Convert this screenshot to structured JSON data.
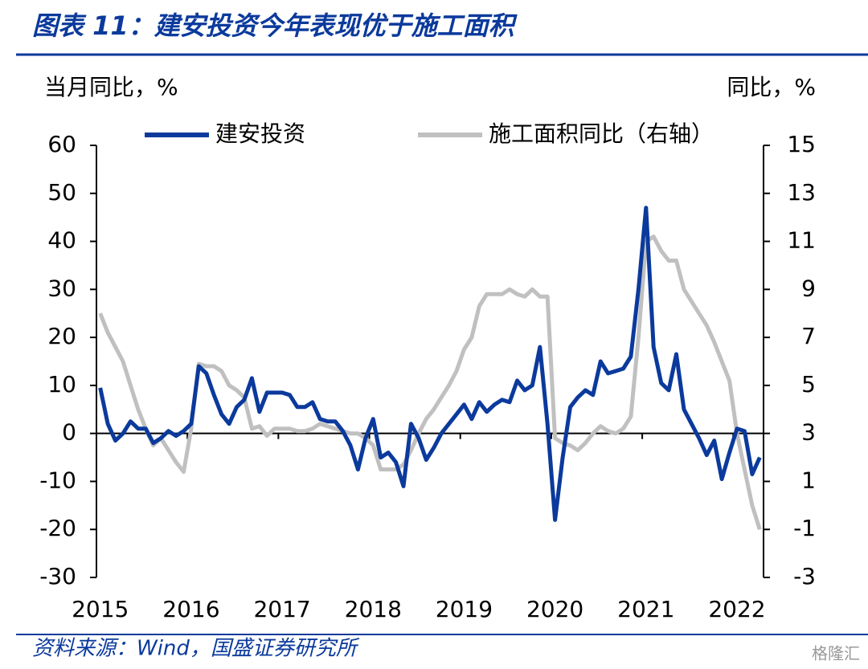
{
  "chart_data": {
    "type": "line",
    "title": "图表 11：建安投资今年表现优于施工面积",
    "ylabel": "当月同比，%",
    "y2label": "同比，%",
    "source": "资料来源：Wind，国盛证券研究所",
    "watermark": "格隆汇",
    "categories": [
      "2015",
      null,
      null,
      null,
      null,
      null,
      null,
      null,
      null,
      null,
      null,
      null,
      "2016",
      null,
      null,
      null,
      null,
      null,
      null,
      null,
      null,
      null,
      null,
      null,
      "2017",
      null,
      null,
      null,
      null,
      null,
      null,
      null,
      null,
      null,
      null,
      null,
      "2018",
      null,
      null,
      null,
      null,
      null,
      null,
      null,
      null,
      null,
      null,
      null,
      "2019",
      null,
      null,
      null,
      null,
      null,
      null,
      null,
      null,
      null,
      null,
      null,
      "2020",
      null,
      null,
      null,
      null,
      null,
      null,
      null,
      null,
      null,
      null,
      null,
      "2021",
      null,
      null,
      null,
      null,
      null,
      null,
      null,
      null,
      null,
      null,
      null,
      "2022",
      null,
      null,
      null
    ],
    "ylim": [
      -30,
      60
    ],
    "yticks": [
      -30,
      -20,
      -10,
      0,
      10,
      20,
      30,
      40,
      50,
      60
    ],
    "y2lim": [
      -3,
      15
    ],
    "y2ticks": [
      -3,
      -1,
      1,
      3,
      5,
      7,
      9,
      11,
      13,
      15
    ],
    "series": [
      {
        "name": "建安投资",
        "color": "#0b3a9c",
        "values": [
          9.5,
          2,
          -1.5,
          0,
          2.5,
          1,
          1,
          -2,
          -1,
          0.5,
          -0.5,
          0.5,
          2,
          14,
          12.5,
          8,
          4,
          2,
          5.5,
          7,
          11.5,
          4.5,
          8.5,
          8.5,
          8.5,
          8,
          5.5,
          5.5,
          6.5,
          3,
          2.5,
          2.5,
          0.5,
          -2.5,
          -7.5,
          -1,
          3,
          -5,
          -4,
          -6,
          -11,
          2,
          -1,
          -5.5,
          -3,
          0,
          2,
          4,
          6,
          3,
          6.5,
          4.5,
          6,
          7,
          6.5,
          11,
          9,
          10,
          18,
          2,
          -18,
          -5,
          5.5,
          7.5,
          9,
          8,
          15,
          12.5,
          13,
          13.5,
          16,
          30,
          47,
          18,
          10.5,
          9,
          16.5,
          5,
          2,
          -1,
          -4.5,
          -1.5,
          -9.5,
          -4,
          1,
          0.5,
          -8.5,
          -5
        ]
      },
      {
        "name": "施工面积同比（右轴）",
        "color": "#c0c0c0",
        "axis": "y2",
        "values": [
          8.0,
          7.2,
          6.6,
          6.0,
          5.0,
          4.0,
          3.2,
          2.5,
          2.8,
          2.3,
          1.8,
          1.4,
          3.2,
          5.9,
          5.8,
          5.8,
          5.6,
          5.0,
          4.8,
          4.5,
          3.2,
          3.3,
          2.9,
          3.2,
          3.2,
          3.2,
          3.1,
          3.1,
          3.2,
          3.4,
          3.3,
          3.2,
          3.1,
          3.0,
          3.0,
          2.8,
          2.5,
          1.5,
          1.5,
          1.5,
          1.7,
          2.3,
          3.0,
          3.6,
          4.0,
          4.5,
          5.0,
          5.6,
          6.5,
          7.0,
          8.3,
          8.8,
          8.8,
          8.8,
          9.0,
          8.8,
          8.7,
          9.0,
          8.7,
          8.7,
          2.8,
          2.6,
          2.5,
          2.3,
          2.6,
          3.0,
          3.3,
          3.1,
          3.0,
          3.2,
          3.7,
          7.0,
          11.0,
          11.2,
          10.6,
          10.2,
          10.2,
          9.0,
          8.5,
          8.0,
          7.5,
          6.8,
          6.0,
          5.2,
          3.0,
          1.5,
          0.0,
          -1.0
        ]
      }
    ]
  }
}
